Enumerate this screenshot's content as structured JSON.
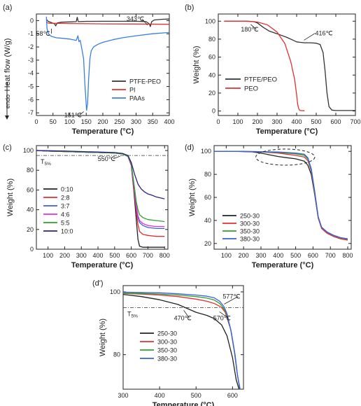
{
  "chart_data": [
    {
      "id": "a",
      "type": "line",
      "panel_label": "(a)",
      "xlabel": "Temperature (°C)",
      "ylabel": "Heat flow (W/g)",
      "ylabel_prefix": "endo",
      "xlim": [
        0,
        400
      ],
      "ylim": [
        -7.2,
        0.5
      ],
      "xticks": [
        0,
        50,
        100,
        150,
        200,
        250,
        300,
        350,
        400
      ],
      "yticks": [
        -7,
        -6,
        -5,
        -4,
        -3,
        -2,
        -1,
        0
      ],
      "xtick_labels": [
        "0",
        "50",
        "100",
        "150",
        "200",
        "250",
        "300",
        "350",
        "400"
      ],
      "ytick_labels": [
        "-7",
        "-6",
        "-5",
        "-4",
        "-3",
        "-2",
        "-1",
        "0"
      ],
      "legend_position": "bottom-right",
      "series": [
        {
          "name": "PTFE-PEO",
          "color": "#333333",
          "x": [
            30,
            35,
            45,
            55,
            58,
            63,
            75,
            100,
            120,
            123,
            126,
            130,
            150,
            200,
            250,
            300,
            330,
            340,
            343,
            347,
            355,
            380,
            400
          ],
          "y": [
            0.1,
            -0.05,
            -0.15,
            -0.25,
            -0.4,
            -0.18,
            -0.12,
            -0.1,
            -0.08,
            0.25,
            -0.08,
            -0.08,
            -0.06,
            -0.05,
            -0.05,
            -0.05,
            -0.08,
            -0.25,
            -0.45,
            -0.08,
            0.05,
            0.1,
            0.12
          ]
        },
        {
          "name": "PI",
          "color": "#e33030",
          "x": [
            30,
            40,
            100,
            200,
            300,
            400
          ],
          "y": [
            -0.15,
            -0.2,
            -0.22,
            -0.25,
            -0.26,
            -0.28
          ]
        },
        {
          "name": "PAAs",
          "color": "#3a7fe0",
          "x": [
            30,
            32,
            36,
            45,
            60,
            80,
            100,
            120,
            125,
            128,
            132,
            138,
            142,
            146,
            149,
            151,
            154,
            157,
            161,
            165,
            172,
            185,
            200,
            230,
            260,
            300,
            350,
            400
          ],
          "y": [
            0.3,
            -0.6,
            -1.0,
            -1.2,
            -1.3,
            -1.35,
            -1.4,
            -1.5,
            -1.15,
            -1.6,
            -1.5,
            -2.3,
            -2.9,
            -4.8,
            -6.0,
            -6.8,
            -6.3,
            -4.5,
            -2.9,
            -2.3,
            -2.0,
            -1.8,
            -1.65,
            -1.45,
            -1.3,
            -1.15,
            -1.0,
            -0.9
          ]
        }
      ],
      "annotations": [
        {
          "text": "58℃",
          "x": 58,
          "y": -0.4
        },
        {
          "text": "343℃",
          "x": 343,
          "y": -0.45
        },
        {
          "text": "151℃",
          "x": 151,
          "y": -6.8
        }
      ]
    },
    {
      "id": "b",
      "type": "line",
      "panel_label": "(b)",
      "xlabel": "Temperature (°C)",
      "ylabel": "Weight (%)",
      "xlim": [
        0,
        700
      ],
      "ylim": [
        -5,
        108
      ],
      "xticks": [
        0,
        100,
        200,
        300,
        400,
        500,
        600,
        700
      ],
      "yticks": [
        0,
        20,
        40,
        60,
        80,
        100
      ],
      "xtick_labels": [
        "0",
        "100",
        "200",
        "300",
        "400",
        "500",
        "600",
        "700"
      ],
      "ytick_labels": [
        "0",
        "20",
        "40",
        "60",
        "80",
        "100"
      ],
      "legend_position": "bottom-left",
      "series": [
        {
          "name": "PTFE/PEO",
          "color": "#333333",
          "x": [
            30,
            100,
            150,
            180,
            200,
            230,
            260,
            300,
            350,
            380,
            400,
            416,
            440,
            470,
            500,
            520,
            535,
            545,
            555,
            565,
            580,
            600,
            650,
            700
          ],
          "y": [
            100,
            100,
            100,
            99.5,
            98,
            93,
            89,
            86,
            82,
            79,
            77,
            76.5,
            76,
            76,
            75.5,
            74,
            65,
            45,
            20,
            5,
            1,
            0.5,
            0.5,
            0.5
          ]
        },
        {
          "name": "PEO",
          "color": "#e33030",
          "x": [
            30,
            100,
            150,
            180,
            200,
            250,
            300,
            340,
            370,
            390,
            400,
            405,
            410,
            415,
            420,
            440
          ],
          "y": [
            100,
            100,
            99.8,
            99.5,
            99,
            96,
            88,
            75,
            55,
            35,
            18,
            8,
            3,
            1,
            0.5,
            0.3
          ]
        }
      ],
      "annotations": [
        {
          "text": "180℃",
          "x": 180,
          "y": 99.5
        },
        {
          "text": "416℃",
          "x": 416,
          "y": 76.5
        }
      ]
    },
    {
      "id": "c",
      "type": "line",
      "panel_label": "(c)",
      "xlabel": "Temperature (°C)",
      "ylabel": "Weight (%)",
      "xlim": [
        30,
        820
      ],
      "ylim": [
        0,
        105
      ],
      "xticks": [
        100,
        200,
        300,
        400,
        500,
        600,
        700,
        800
      ],
      "yticks": [
        0,
        20,
        40,
        60,
        80,
        100
      ],
      "xtick_labels": [
        "100",
        "200",
        "300",
        "400",
        "500",
        "600",
        "700",
        "800"
      ],
      "ytick_labels": [
        "0",
        "20",
        "40",
        "60",
        "80",
        "100"
      ],
      "reference_line_y": 95,
      "reference_label": "T",
      "reference_label_sub": "5%",
      "legend_position": "center-left",
      "series": [
        {
          "name": "0:10",
          "color": "#222222",
          "x": [
            30,
            100,
            200,
            300,
            400,
            500,
            550,
            580,
            600,
            615,
            630,
            640,
            650,
            670,
            700,
            750,
            800
          ],
          "y": [
            100,
            99.5,
            99,
            98.5,
            98,
            97.5,
            96.5,
            94,
            85,
            60,
            30,
            10,
            3,
            2,
            2,
            2,
            2
          ]
        },
        {
          "name": "2:8",
          "color": "#e33030",
          "x": [
            30,
            100,
            200,
            300,
            400,
            500,
            550,
            580,
            600,
            615,
            630,
            640,
            650,
            670,
            700,
            750,
            800
          ],
          "y": [
            100,
            99.5,
            99,
            98.5,
            98,
            97.5,
            96.5,
            94,
            85,
            62,
            38,
            25,
            18,
            15,
            14,
            13,
            13
          ]
        },
        {
          "name": "3:7",
          "color": "#3a5fe0",
          "x": [
            30,
            100,
            200,
            300,
            400,
            500,
            550,
            580,
            600,
            615,
            630,
            640,
            650,
            670,
            700,
            750,
            800
          ],
          "y": [
            100,
            99.5,
            99,
            98.5,
            98,
            97.5,
            96.5,
            94,
            86,
            65,
            42,
            32,
            27,
            24,
            22,
            21,
            21
          ]
        },
        {
          "name": "4:6",
          "color": "#e030e0",
          "x": [
            30,
            100,
            200,
            300,
            400,
            500,
            550,
            580,
            600,
            615,
            630,
            640,
            650,
            670,
            700,
            750,
            800
          ],
          "y": [
            100,
            99.5,
            99,
            98.5,
            98,
            97.5,
            96.5,
            94,
            86,
            66,
            44,
            34,
            29,
            26,
            24,
            23,
            23
          ]
        },
        {
          "name": "5:5",
          "color": "#30a030",
          "x": [
            30,
            100,
            200,
            300,
            400,
            500,
            550,
            580,
            600,
            615,
            630,
            640,
            650,
            670,
            700,
            750,
            800
          ],
          "y": [
            100,
            99.5,
            99,
            98.5,
            98,
            97.5,
            96.5,
            94,
            87,
            68,
            48,
            40,
            35,
            32,
            30,
            29,
            28
          ]
        },
        {
          "name": "10:0",
          "color": "#302080",
          "x": [
            30,
            100,
            200,
            300,
            400,
            500,
            550,
            580,
            600,
            620,
            640,
            660,
            680,
            700,
            720,
            750,
            800
          ],
          "y": [
            100,
            99.8,
            99.5,
            99,
            98.5,
            98,
            97,
            95,
            88,
            76,
            66,
            61,
            58,
            56,
            55,
            53,
            51
          ]
        }
      ],
      "annotations": [
        {
          "text": "550℃",
          "x": 550,
          "y": 96.5
        }
      ]
    },
    {
      "id": "d",
      "type": "line",
      "panel_label": "(d)",
      "xlabel": "Temperature (°C)",
      "ylabel": "Weight (%)",
      "xlim": [
        30,
        820
      ],
      "ylim": [
        15,
        105
      ],
      "xticks": [
        100,
        200,
        300,
        400,
        500,
        600,
        700,
        800
      ],
      "yticks": [
        20,
        40,
        60,
        80,
        100
      ],
      "xtick_labels": [
        "100",
        "200",
        "300",
        "400",
        "500",
        "600",
        "700",
        "800"
      ],
      "ytick_labels": [
        "20",
        "40",
        "60",
        "80",
        "100"
      ],
      "highlight_ellipse": {
        "cx": 440,
        "cy": 95,
        "rx": 170,
        "ry": 7
      },
      "legend_position": "bottom-left",
      "series": [
        {
          "name": "250-30",
          "color": "#222222",
          "x": [
            30,
            150,
            250,
            300,
            350,
            400,
            450,
            500,
            550,
            570,
            590,
            610,
            630,
            650,
            680,
            720,
            760,
            800
          ],
          "y": [
            100,
            100,
            99.5,
            98.5,
            97,
            95.5,
            94.5,
            93.5,
            91.5,
            88,
            80,
            62,
            42,
            33,
            29,
            26,
            24,
            23
          ]
        },
        {
          "name": "300-30",
          "color": "#e33030",
          "x": [
            30,
            150,
            250,
            300,
            350,
            400,
            450,
            500,
            550,
            570,
            590,
            610,
            630,
            650,
            680,
            720,
            760,
            800
          ],
          "y": [
            100,
            100,
            99.8,
            99.5,
            99,
            98.5,
            97.5,
            96.5,
            95,
            92,
            83,
            63,
            42,
            33,
            29,
            26,
            24,
            23
          ]
        },
        {
          "name": "350-30",
          "color": "#30a030",
          "x": [
            30,
            150,
            250,
            300,
            350,
            400,
            450,
            500,
            550,
            570,
            590,
            610,
            630,
            650,
            680,
            720,
            760,
            800
          ],
          "y": [
            100,
            100,
            99.8,
            99.6,
            99.3,
            99,
            98.5,
            97.8,
            96.5,
            93.5,
            84,
            64,
            43,
            34,
            30,
            27,
            25,
            24
          ]
        },
        {
          "name": "380-30",
          "color": "#3a5fe0",
          "x": [
            30,
            150,
            250,
            300,
            350,
            400,
            450,
            500,
            550,
            570,
            590,
            610,
            630,
            650,
            680,
            720,
            760,
            800
          ],
          "y": [
            100,
            100,
            99.9,
            99.8,
            99.6,
            99.4,
            99,
            98.5,
            97.5,
            94.5,
            85,
            65,
            43,
            34,
            30,
            27,
            25,
            24
          ]
        }
      ]
    },
    {
      "id": "d'",
      "type": "line",
      "panel_label": "(d')",
      "xlabel": "Temperature (°C)",
      "ylabel": "Weight (%)",
      "xlim": [
        300,
        630
      ],
      "ylim": [
        69,
        102
      ],
      "xticks": [
        300,
        400,
        500,
        600
      ],
      "yticks": [
        80,
        100
      ],
      "xtick_labels": [
        "300",
        "400",
        "500",
        "600"
      ],
      "ytick_labels": [
        "80",
        "100"
      ],
      "reference_line_y": 95,
      "reference_label": "T",
      "reference_label_sub": "5%",
      "legend_position": "bottom-center",
      "series": [
        {
          "name": "250-30",
          "color": "#222222",
          "x": [
            300,
            350,
            400,
            450,
            470,
            500,
            530,
            550,
            570,
            585,
            600,
            610,
            618
          ],
          "y": [
            99.2,
            98.5,
            97.5,
            96,
            95,
            93.5,
            92.5,
            91.5,
            89.5,
            86,
            79,
            72,
            69
          ]
        },
        {
          "name": "300-30",
          "color": "#e33030",
          "x": [
            300,
            350,
            400,
            450,
            500,
            530,
            550,
            565,
            570,
            580,
            595,
            605,
            613,
            620
          ],
          "y": [
            99.5,
            99.3,
            99,
            98.5,
            97.7,
            97,
            96.3,
            95.4,
            95,
            93.5,
            88,
            81,
            74,
            69
          ]
        },
        {
          "name": "350-30",
          "color": "#30a030",
          "x": [
            300,
            350,
            400,
            450,
            500,
            530,
            550,
            565,
            572,
            582,
            595,
            605,
            613,
            620
          ],
          "y": [
            99.6,
            99.5,
            99.3,
            99,
            98.5,
            98,
            97.4,
            96.3,
            95.3,
            93.5,
            88,
            81,
            74,
            69
          ]
        },
        {
          "name": "380-30",
          "color": "#3a5fe0",
          "x": [
            300,
            350,
            400,
            450,
            500,
            530,
            550,
            565,
            577,
            585,
            597,
            607,
            614,
            621
          ],
          "y": [
            99.9,
            99.8,
            99.7,
            99.4,
            99,
            98.6,
            98.1,
            97,
            95.2,
            93,
            87,
            80,
            73,
            69
          ]
        }
      ],
      "annotations": [
        {
          "text": "470℃",
          "x": 470,
          "y": 95
        },
        {
          "text": "570℃",
          "x": 570,
          "y": 95
        },
        {
          "text": "577℃",
          "x": 577,
          "y": 95.2
        }
      ]
    }
  ]
}
